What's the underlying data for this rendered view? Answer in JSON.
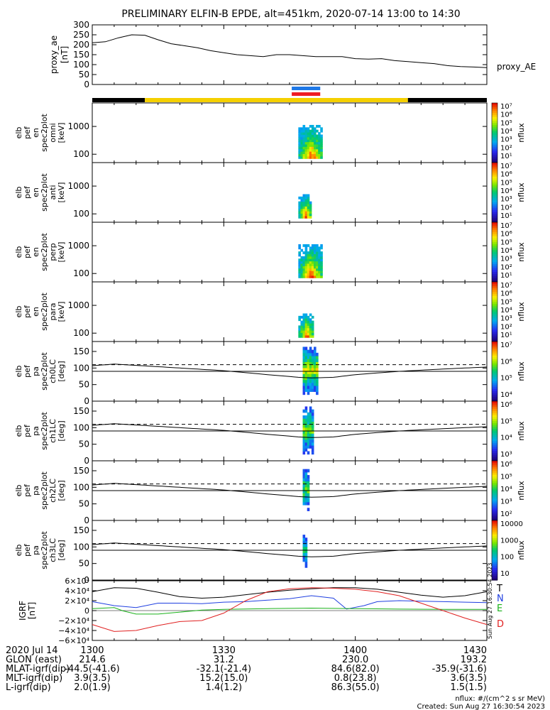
{
  "title": "PRELIMINARY ELFIN-B EPDE, alt=451km, 2020-07-14 13:00 to 14:30",
  "colors": {
    "foreground": "#000000",
    "background": "#ffffff",
    "science_bar": "#f5d000",
    "orbit_dark": "#000000",
    "marker_blue": "#1e78e6",
    "marker_red": "#ee1c24",
    "comp_T": "#000000",
    "comp_N": "#1f3fe0",
    "comp_E": "#1ab11a",
    "comp_D": "#e02020"
  },
  "proxy_panel": {
    "ylabel": "proxy_ae [nT]",
    "legend": "proxy_AE"
  },
  "spec_panels": [
    {
      "ylabel_lines": [
        "elb",
        "pef",
        "en",
        "spec2plot",
        "omni",
        "[keV]"
      ],
      "colorbar_unit": "nflux",
      "cb_tick_labels": [
        "10⁷",
        "10⁶",
        "10⁵",
        "10⁴",
        "10³",
        "10²",
        "10¹"
      ]
    },
    {
      "ylabel_lines": [
        "elb",
        "pef",
        "en",
        "spec2plot",
        "anti",
        "[keV]"
      ],
      "colorbar_unit": "nflux",
      "cb_tick_labels": [
        "10⁷",
        "10⁶",
        "10⁵",
        "10⁴",
        "10³",
        "10²",
        "10¹"
      ]
    },
    {
      "ylabel_lines": [
        "elb",
        "pef",
        "en",
        "spec2plot",
        "perp",
        "[keV]"
      ],
      "colorbar_unit": "nflux",
      "cb_tick_labels": [
        "10⁷",
        "10⁶",
        "10⁵",
        "10⁴",
        "10³",
        "10²",
        "10¹"
      ]
    },
    {
      "ylabel_lines": [
        "elb",
        "pef",
        "en",
        "spec2plot",
        "para",
        "[keV]"
      ],
      "colorbar_unit": "nflux",
      "cb_tick_labels": [
        "10⁷",
        "10⁶",
        "10⁵",
        "10⁴",
        "10³",
        "10²",
        "10¹"
      ]
    }
  ],
  "pa_panels": [
    {
      "ylabel_lines": [
        "elb",
        "pef",
        "pa",
        "spec2plot",
        "ch0LC",
        "[deg]"
      ],
      "colorbar_unit": "nflux",
      "cb_tick_labels": [
        "10⁷",
        "10⁶",
        "10⁵",
        "10⁴"
      ]
    },
    {
      "ylabel_lines": [
        "elb",
        "pef",
        "pa",
        "spec2plot",
        "ch1LC",
        "[deg]"
      ],
      "colorbar_unit": "nflux",
      "cb_tick_labels": [
        "10⁶",
        "10⁵",
        "10⁴",
        "10³"
      ]
    },
    {
      "ylabel_lines": [
        "elb",
        "pef",
        "pa",
        "spec2plot",
        "ch2LC",
        "[deg]"
      ],
      "colorbar_unit": "nflux",
      "cb_tick_labels": [
        "10⁶",
        "10⁵",
        "10⁴",
        "10³",
        "10²"
      ]
    },
    {
      "ylabel_lines": [
        "elb",
        "pef",
        "pa",
        "spec2plot",
        "ch3LC",
        "[deg]"
      ],
      "colorbar_unit": "nflux",
      "cb_tick_labels": [
        "10000",
        "1000",
        "100",
        "10"
      ]
    }
  ],
  "b_panel": {
    "ylabel_lines": [
      "IGRF",
      "[nT]"
    ],
    "legend": [
      "T",
      "N",
      "E",
      "D"
    ],
    "y_tick_labels": [
      "6×10⁴",
      "4×10⁴",
      "2×10⁴",
      "0",
      "−2×10⁴",
      "−4×10⁴",
      "−6×10⁴"
    ],
    "stamp": "Sun Aug 27 16:30:54 2023"
  },
  "footer": {
    "rows": [
      {
        "label": "2020 Jul 14",
        "values": [
          "1300",
          "1330",
          "1400",
          "1430"
        ]
      },
      {
        "label": "GLON (east)",
        "values": [
          "214.6",
          "31.2",
          "230.0",
          "193.2"
        ]
      },
      {
        "label": "MLAT-igrf(dip)",
        "values": [
          "-44.5(-41.6)",
          "-32.1(-21.4)",
          "84.6(82.0)",
          "-35.9(-31.6)"
        ]
      },
      {
        "label": "MLT-igrf(dip)",
        "values": [
          "3.9(3.5)",
          "15.2(15.0)",
          "0.8(23.8)",
          "3.6(3.5)"
        ]
      },
      {
        "label": "L-igrf(dip)",
        "values": [
          "2.0(1.9)",
          "1.4(1.2)",
          "86.3(55.0)",
          "1.5(1.5)"
        ]
      }
    ],
    "units_note": "nflux: #/(cm^2 s sr MeV)",
    "created": "Created: Sun Aug 27 16:30:54 2023"
  },
  "chart_data": [
    {
      "type": "line",
      "title": "PRELIMINARY ELFIN-B EPDE, alt=451km, 2020-07-14 13:00 to 14:30",
      "ylabel": "proxy_ae [nT]",
      "xlim": [
        0,
        90
      ],
      "ylim": [
        0,
        300
      ],
      "yticks": [
        0,
        50,
        100,
        150,
        200,
        250,
        300
      ],
      "series": [
        {
          "name": "proxy_AE",
          "x": [
            0,
            3,
            6,
            9,
            12,
            15,
            18,
            21,
            24,
            27,
            30,
            33,
            36,
            39,
            42,
            45,
            48,
            51,
            54,
            57,
            60,
            63,
            66,
            69,
            72,
            75,
            78,
            81,
            84,
            87,
            90
          ],
          "y": [
            210,
            215,
            235,
            250,
            248,
            225,
            205,
            195,
            185,
            170,
            160,
            150,
            145,
            140,
            150,
            150,
            145,
            140,
            140,
            140,
            130,
            128,
            130,
            120,
            115,
            110,
            105,
            95,
            90,
            88,
            85
          ]
        }
      ]
    },
    {
      "type": "heatmap",
      "ylabel": "elb pef en spec2plot omni [keV]",
      "y_scale": "log",
      "ytick_labels": [
        "100",
        "1000"
      ],
      "colorbar_label": "nflux",
      "colorbar_range": [
        10,
        10000000
      ]
    },
    {
      "type": "heatmap",
      "ylabel": "elb pef en spec2plot anti [keV]",
      "y_scale": "log",
      "ytick_labels": [
        "100",
        "1000"
      ],
      "colorbar_label": "nflux",
      "colorbar_range": [
        10,
        10000000
      ]
    },
    {
      "type": "heatmap",
      "ylabel": "elb pef en spec2plot perp [keV]",
      "y_scale": "log",
      "ytick_labels": [
        "100",
        "1000"
      ],
      "colorbar_label": "nflux",
      "colorbar_range": [
        10,
        10000000
      ]
    },
    {
      "type": "heatmap",
      "ylabel": "elb pef en spec2plot para [keV]",
      "y_scale": "log",
      "ytick_labels": [
        "100",
        "1000"
      ],
      "colorbar_label": "nflux",
      "colorbar_range": [
        10,
        10000000
      ]
    },
    {
      "type": "heatmap",
      "ylabel": "elb pef pa spec2plot ch0LC [deg]",
      "ylim": [
        0,
        180
      ],
      "yticks": [
        0,
        50,
        100,
        150
      ],
      "colorbar_label": "nflux",
      "colorbar_range": [
        10000,
        10000000
      ]
    },
    {
      "type": "heatmap",
      "ylabel": "elb pef pa spec2plot ch1LC [deg]",
      "ylim": [
        0,
        180
      ],
      "yticks": [
        0,
        50,
        100,
        150
      ],
      "colorbar_label": "nflux",
      "colorbar_range": [
        1000,
        1000000
      ]
    },
    {
      "type": "heatmap",
      "ylabel": "elb pef pa spec2plot ch2LC [deg]",
      "ylim": [
        0,
        180
      ],
      "yticks": [
        0,
        50,
        100,
        150
      ],
      "colorbar_label": "nflux",
      "colorbar_range": [
        100,
        1000000
      ]
    },
    {
      "type": "heatmap",
      "ylabel": "elb pef pa spec2plot ch3LC [deg]",
      "ylim": [
        0,
        180
      ],
      "yticks": [
        0,
        50,
        100,
        150
      ],
      "colorbar_label": "nflux",
      "colorbar_range": [
        10,
        10000
      ]
    },
    {
      "type": "line",
      "ylabel": "IGRF [nT]",
      "xlim": [
        0,
        90
      ],
      "ylim": [
        -60000,
        60000
      ],
      "yticks": [
        -60000,
        -40000,
        -20000,
        0,
        20000,
        40000,
        60000
      ],
      "series": [
        {
          "name": "T",
          "x": [
            0,
            5,
            10,
            15,
            20,
            25,
            30,
            35,
            40,
            45,
            50,
            55,
            60,
            65,
            70,
            75,
            80,
            85,
            90
          ],
          "y": [
            38000,
            46000,
            45000,
            37000,
            28000,
            25000,
            27000,
            32000,
            37000,
            41000,
            44000,
            46000,
            46000,
            43000,
            37000,
            31000,
            27000,
            30000,
            38000
          ]
        },
        {
          "name": "N",
          "x": [
            0,
            5,
            10,
            15,
            20,
            25,
            30,
            35,
            40,
            45,
            50,
            55,
            58,
            62,
            65,
            70,
            75,
            80,
            85,
            90
          ],
          "y": [
            18000,
            10000,
            6000,
            15000,
            15000,
            14000,
            17000,
            18000,
            21000,
            24000,
            30000,
            25000,
            3000,
            10000,
            18000,
            20000,
            19000,
            18000,
            17000,
            16000
          ]
        },
        {
          "name": "E",
          "x": [
            0,
            5,
            7,
            10,
            15,
            20,
            25,
            30,
            40,
            50,
            60,
            70,
            80,
            90
          ],
          "y": [
            4000,
            6000,
            -500,
            -7000,
            -7000,
            -3000,
            1000,
            2500,
            4000,
            5000,
            4000,
            3000,
            2500,
            2500
          ]
        },
        {
          "name": "D",
          "x": [
            0,
            5,
            10,
            15,
            20,
            25,
            30,
            35,
            40,
            45,
            50,
            55,
            60,
            65,
            70,
            75,
            80,
            85,
            90
          ],
          "y": [
            -28000,
            -42000,
            -40000,
            -30000,
            -22000,
            -20000,
            -5000,
            20000,
            38000,
            44000,
            46000,
            45000,
            43000,
            38000,
            30000,
            15000,
            0,
            -15000,
            -28000
          ]
        }
      ]
    }
  ]
}
